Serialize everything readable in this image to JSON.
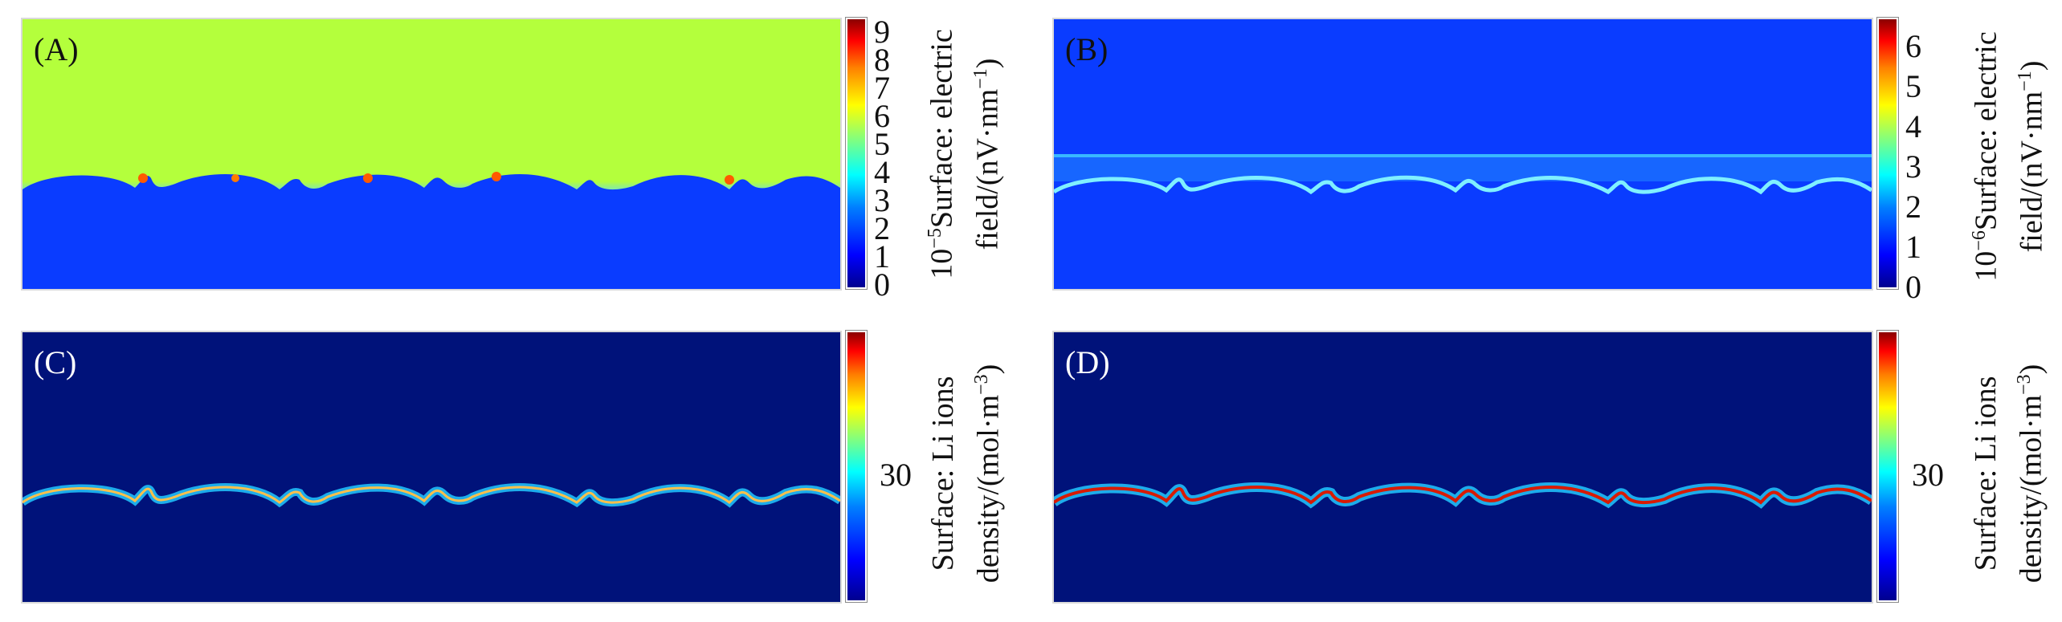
{
  "figure": {
    "panels": [
      {
        "label": "(A)",
        "colorbar": {
          "ticks": [
            "9",
            "8",
            "7",
            "6",
            "5",
            "4",
            "3",
            "2",
            "1",
            "0"
          ],
          "label_line1_prefix": "10",
          "label_line1_exp": "−5",
          "label_line1_rest": "Surface: electric",
          "label_line2_prefix": "field/(nV·nm",
          "label_line2_exp": "−1",
          "label_line2_suffix": ")"
        }
      },
      {
        "label": "(B)",
        "colorbar": {
          "ticks": [
            "6",
            "5",
            "4",
            "3",
            "2",
            "1",
            "0"
          ],
          "label_line1_prefix": "10",
          "label_line1_exp": "−6",
          "label_line1_rest": "Surface: electric",
          "label_line2_prefix": "field/(nV·nm",
          "label_line2_exp": "−1",
          "label_line2_suffix": ")"
        }
      },
      {
        "label": "(C)",
        "colorbar": {
          "ticks": [
            "30"
          ],
          "label_line1": "Surface: Li ions",
          "label_line2_prefix": "density/(mol·m",
          "label_line2_exp": "−3",
          "label_line2_suffix": ")"
        }
      },
      {
        "label": "(D)",
        "colorbar": {
          "ticks": [
            "30"
          ],
          "label_line1": "Surface: Li ions",
          "label_line2_prefix": "density/(mol·m",
          "label_line2_exp": "−3",
          "label_line2_suffix": ")"
        }
      }
    ],
    "colors": {
      "field_high": "#b4ff3c",
      "field_low": "#0a3cff",
      "dark_navy": "#00127a",
      "jet_red": "#d91a00"
    }
  }
}
